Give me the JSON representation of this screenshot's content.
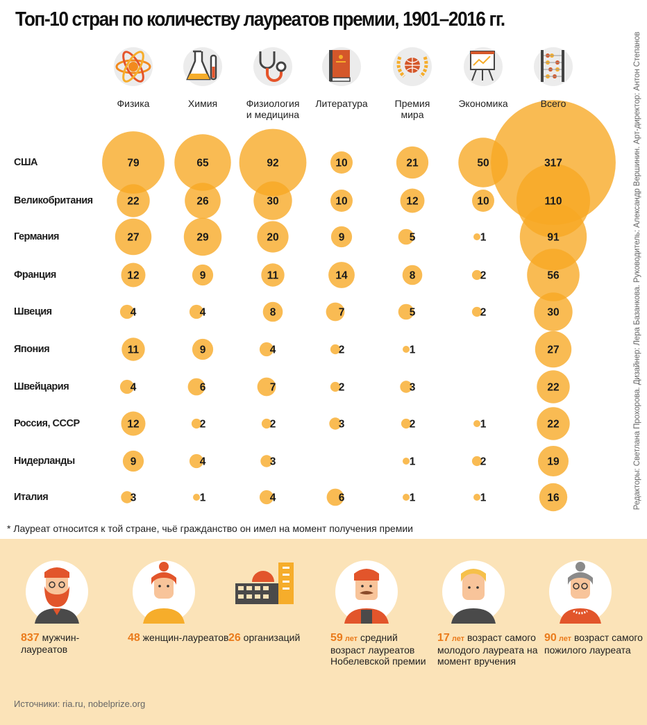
{
  "title": "Топ-10 стран по количеству лауреатов премии, 1901–2016 гг.",
  "credits": "Редакторы: Светлана Прохорова. Дизайнер: Лера Базанкова. Руководитель: Александр Вершинин. Арт-директор: Антон Степанов",
  "footnote": "* Лауреат относится к той стране, чьё гражданство он имел на момент получения премии",
  "chart_data": {
    "type": "bubble-table",
    "categories": [
      "Физика",
      "Химия",
      "Физиология и медицина",
      "Литература",
      "Премия мира",
      "Экономика",
      "Всего"
    ],
    "category_lines": [
      [
        "Физика"
      ],
      [
        "Химия"
      ],
      [
        "Физиология",
        "и медицина"
      ],
      [
        "Литература"
      ],
      [
        "Премия",
        "мира"
      ],
      [
        "Экономика"
      ],
      [
        "Всего"
      ]
    ],
    "category_icons": [
      "atom-icon",
      "flask-icon",
      "stethoscope-icon",
      "book-icon",
      "globe-laurel-icon",
      "chart-board-icon",
      "abacus-icon"
    ],
    "rows": [
      {
        "country": "США",
        "values": [
          79,
          65,
          92,
          10,
          21,
          50,
          317
        ]
      },
      {
        "country": "Великобритания",
        "values": [
          22,
          26,
          30,
          10,
          12,
          10,
          110
        ]
      },
      {
        "country": "Германия",
        "values": [
          27,
          29,
          20,
          9,
          5,
          1,
          91
        ]
      },
      {
        "country": "Франция",
        "values": [
          12,
          9,
          11,
          14,
          8,
          2,
          56
        ]
      },
      {
        "country": "Швеция",
        "values": [
          4,
          4,
          8,
          7,
          5,
          2,
          30
        ]
      },
      {
        "country": "Япония",
        "values": [
          11,
          9,
          4,
          2,
          1,
          null,
          27
        ]
      },
      {
        "country": "Швейцария",
        "values": [
          4,
          6,
          7,
          2,
          3,
          null,
          22
        ]
      },
      {
        "country": "Россия, СССР",
        "values": [
          12,
          2,
          2,
          3,
          2,
          1,
          22
        ]
      },
      {
        "country": "Нидерланды",
        "values": [
          9,
          4,
          3,
          null,
          1,
          2,
          19
        ]
      },
      {
        "country": "Италия",
        "values": [
          3,
          1,
          4,
          6,
          1,
          1,
          16
        ]
      }
    ],
    "colors": {
      "bubble": "#f7a823",
      "bubble_opacity": 0.78,
      "accent": "#ea7b1c"
    }
  },
  "stats": [
    {
      "icon": "bearded-man-icon",
      "number": "837",
      "unit": "",
      "text": "мужчин-лауреатов"
    },
    {
      "icon": "woman-icon",
      "number": "48",
      "unit": "",
      "text": "женщин-лауреатов"
    },
    {
      "icon": "organization-building-icon",
      "number": "26",
      "unit": "",
      "text": "организаций"
    },
    {
      "icon": "mustached-man-icon",
      "number": "59",
      "unit": "лет",
      "text": "средний возраст лауреатов Нобелевской премии"
    },
    {
      "icon": "young-man-icon",
      "number": "17",
      "unit": "лет",
      "text": "возраст самого молодого лауреата на момент вручения"
    },
    {
      "icon": "elderly-woman-icon",
      "number": "90",
      "unit": "лет",
      "text": "возраст самого пожилого лауреата"
    }
  ],
  "source": "Источники: ria.ru, nobelprize.org"
}
